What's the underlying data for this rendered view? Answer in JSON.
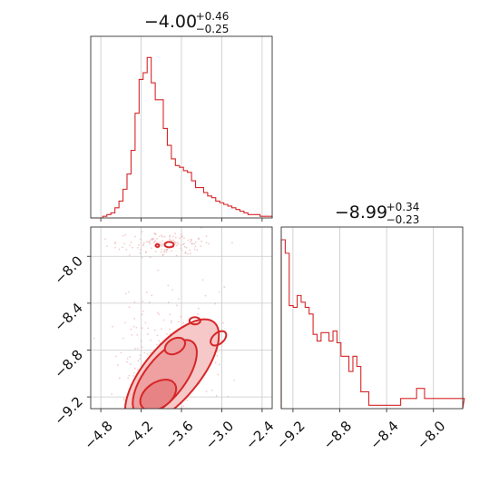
{
  "chart_data": [
    {
      "type": "histogram",
      "panel": "top-left",
      "title": {
        "median": "−4.00",
        "plus": "+0.46",
        "minus": "−0.25"
      },
      "xlim": [
        -4.95,
        -2.25
      ],
      "x_ticks": [
        -4.8,
        -4.2,
        -3.6,
        -3.0,
        -2.4
      ],
      "x_tick_labels_shown": false,
      "y_ticks_shown": false,
      "grid": true,
      "color": "#d62728",
      "bins": {
        "start": -4.95,
        "width": 0.06,
        "counts": [
          0,
          0,
          0,
          0.01,
          0.02,
          0.03,
          0.06,
          0.1,
          0.17,
          0.26,
          0.4,
          0.62,
          0.82,
          0.86,
          0.95,
          0.8,
          0.7,
          0.7,
          0.53,
          0.43,
          0.35,
          0.31,
          0.3,
          0.28,
          0.27,
          0.22,
          0.18,
          0.18,
          0.15,
          0.13,
          0.12,
          0.1,
          0.09,
          0.08,
          0.07,
          0.06,
          0.05,
          0.04,
          0.03,
          0.02,
          0.02,
          0.02,
          0.01,
          0.01,
          0.01
        ]
      }
    },
    {
      "type": "contour",
      "panel": "bottom-left",
      "xlim": [
        -4.95,
        -2.25
      ],
      "ylim": [
        -9.3,
        -7.75
      ],
      "x_ticks": [
        -4.8,
        -4.2,
        -3.6,
        -3.0,
        -2.4
      ],
      "x_tick_labels": [
        "−4.8",
        "−4.2",
        "−3.6",
        "−3.0",
        "−2.4"
      ],
      "y_ticks": [
        -9.2,
        -8.8,
        -8.4,
        -8.0
      ],
      "y_tick_labels": [
        "−9.2",
        "−8.8",
        "−8.4",
        "−8.0"
      ],
      "grid": true,
      "color": "#d62728",
      "density_peaks": [
        {
          "x": -4.0,
          "y": -9.2
        },
        {
          "x": -3.75,
          "y": -8.75
        },
        {
          "x": -3.85,
          "y": -7.9
        }
      ]
    },
    {
      "type": "histogram",
      "panel": "bottom-right",
      "title": {
        "median": "−8.99",
        "plus": "+0.34",
        "minus": "−0.23"
      },
      "xlim": [
        -9.3,
        -7.75
      ],
      "x_ticks": [
        -9.2,
        -8.8,
        -8.4,
        -8.0
      ],
      "x_tick_labels": [
        "−9.2",
        "−8.8",
        "−8.4",
        "−8.0"
      ],
      "y_ticks_shown": false,
      "grid": true,
      "color": "#d62728",
      "bins": {
        "start": -9.3,
        "width": 0.034,
        "counts": [
          1.0,
          0.92,
          0.61,
          0.6,
          0.67,
          0.63,
          0.6,
          0.56,
          0.44,
          0.4,
          0.45,
          0.45,
          0.4,
          0.46,
          0.39,
          0.31,
          0.31,
          0.22,
          0.31,
          0.25,
          0.1,
          0.1,
          0.02,
          0.02,
          0.02,
          0.02,
          0.02,
          0.02,
          0.02,
          0.02,
          0.06,
          0.06,
          0.06,
          0.06,
          0.12,
          0.12,
          0.06,
          0.06,
          0.06,
          0.06,
          0.06,
          0.06,
          0.06,
          0.06,
          0.06,
          0.06
        ]
      }
    }
  ]
}
